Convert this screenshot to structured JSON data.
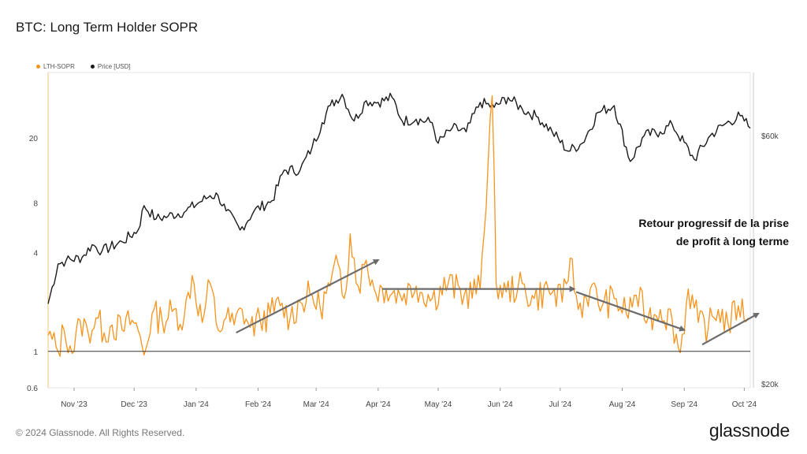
{
  "chart_data": {
    "type": "line",
    "title": "BTC: Long Term Holder SOPR",
    "legend": {
      "placement": "top-left",
      "entries": [
        "LTH-SOPR",
        "Price [USD]"
      ]
    },
    "colors": {
      "lth_sopr": "#f7931a",
      "price": "#1a1a1a",
      "baseline": "#333333",
      "arrow": "#6b6b6b"
    },
    "x_range": [
      "2023-10-19",
      "2024-10-04"
    ],
    "x_ticks": [
      {
        "label": "Nov '23",
        "date": "2023-11-01"
      },
      {
        "label": "Dec '23",
        "date": "2023-12-01"
      },
      {
        "label": "Jan '24",
        "date": "2024-01-01"
      },
      {
        "label": "Feb '24",
        "date": "2024-02-01"
      },
      {
        "label": "Mar '24",
        "date": "2024-03-01"
      },
      {
        "label": "Apr '24",
        "date": "2024-04-01"
      },
      {
        "label": "May '24",
        "date": "2024-05-01"
      },
      {
        "label": "Jun '24",
        "date": "2024-06-01"
      },
      {
        "label": "Jul '24",
        "date": "2024-07-01"
      },
      {
        "label": "Aug '24",
        "date": "2024-08-01"
      },
      {
        "label": "Sep '24",
        "date": "2024-09-01"
      },
      {
        "label": "Oct '24",
        "date": "2024-10-01"
      }
    ],
    "y_left": {
      "scale": "log",
      "range": [
        0.6,
        50
      ],
      "ticks": [
        {
          "label": "0.6",
          "value": 0.6
        },
        {
          "label": "1",
          "value": 1
        },
        {
          "label": "4",
          "value": 4
        },
        {
          "label": "8",
          "value": 8
        },
        {
          "label": "20",
          "value": 20
        }
      ]
    },
    "y_right": {
      "scale": "log",
      "ticks": [
        {
          "label": "$20k",
          "value": 20000
        },
        {
          "label": "$60k",
          "value": 60000
        }
      ]
    },
    "baseline_value": 1,
    "series": [
      {
        "name": "LTH-SOPR",
        "axis": "left",
        "points": [
          [
            "2023-10-19",
            1.25
          ],
          [
            "2023-10-24",
            1.0
          ],
          [
            "2023-10-27",
            1.35
          ],
          [
            "2023-11-01",
            1.0
          ],
          [
            "2023-11-04",
            1.55
          ],
          [
            "2023-11-08",
            1.3
          ],
          [
            "2023-11-12",
            1.6
          ],
          [
            "2023-11-16",
            1.3
          ],
          [
            "2023-11-20",
            1.45
          ],
          [
            "2023-11-25",
            1.35
          ],
          [
            "2023-11-30",
            1.55
          ],
          [
            "2023-12-03",
            1.35
          ],
          [
            "2023-12-06",
            0.95
          ],
          [
            "2023-12-10",
            1.7
          ],
          [
            "2023-12-15",
            1.55
          ],
          [
            "2023-12-20",
            1.75
          ],
          [
            "2023-12-26",
            1.6
          ],
          [
            "2023-12-30",
            2.9
          ],
          [
            "2024-01-04",
            1.5
          ],
          [
            "2024-01-08",
            2.6
          ],
          [
            "2024-01-12",
            1.35
          ],
          [
            "2024-01-16",
            1.6
          ],
          [
            "2024-01-20",
            1.45
          ],
          [
            "2024-01-24",
            1.8
          ],
          [
            "2024-01-28",
            1.4
          ],
          [
            "2024-02-02",
            1.55
          ],
          [
            "2024-02-07",
            1.7
          ],
          [
            "2024-02-12",
            1.9
          ],
          [
            "2024-02-17",
            1.6
          ],
          [
            "2024-02-22",
            2.0
          ],
          [
            "2024-02-27",
            2.2
          ],
          [
            "2024-03-03",
            1.85
          ],
          [
            "2024-03-08",
            2.5
          ],
          [
            "2024-03-12",
            3.4
          ],
          [
            "2024-03-15",
            2.1
          ],
          [
            "2024-03-18",
            5.2
          ],
          [
            "2024-03-22",
            2.5
          ],
          [
            "2024-03-26",
            3.6
          ],
          [
            "2024-03-30",
            2.4
          ],
          [
            "2024-04-05",
            2.4
          ],
          [
            "2024-04-12",
            2.2
          ],
          [
            "2024-04-20",
            2.5
          ],
          [
            "2024-04-28",
            2.1
          ],
          [
            "2024-05-06",
            2.6
          ],
          [
            "2024-05-14",
            2.2
          ],
          [
            "2024-05-22",
            2.4
          ],
          [
            "2024-05-28",
            36
          ],
          [
            "2024-05-30",
            2.6
          ],
          [
            "2024-06-04",
            2.3
          ],
          [
            "2024-06-10",
            2.5
          ],
          [
            "2024-06-18",
            2.1
          ],
          [
            "2024-06-25",
            2.4
          ],
          [
            "2024-07-02",
            2.0
          ],
          [
            "2024-07-06",
            3.7
          ],
          [
            "2024-07-10",
            1.8
          ],
          [
            "2024-07-16",
            2.4
          ],
          [
            "2024-07-22",
            1.9
          ],
          [
            "2024-07-28",
            2.1
          ],
          [
            "2024-08-03",
            1.7
          ],
          [
            "2024-08-08",
            2.2
          ],
          [
            "2024-08-14",
            1.6
          ],
          [
            "2024-08-20",
            1.8
          ],
          [
            "2024-08-26",
            1.55
          ],
          [
            "2024-08-30",
            0.98
          ],
          [
            "2024-09-03",
            2.4
          ],
          [
            "2024-09-08",
            1.5
          ],
          [
            "2024-09-13",
            1.4
          ],
          [
            "2024-09-18",
            1.8
          ],
          [
            "2024-09-23",
            1.45
          ],
          [
            "2024-09-28",
            1.9
          ],
          [
            "2024-10-03",
            1.6
          ]
        ]
      },
      {
        "name": "Price [USD]",
        "axis": "right",
        "points": [
          [
            "2023-10-19",
            28500
          ],
          [
            "2023-10-24",
            34000
          ],
          [
            "2023-10-28",
            34500
          ],
          [
            "2023-11-05",
            35000
          ],
          [
            "2023-11-10",
            37000
          ],
          [
            "2023-11-15",
            36000
          ],
          [
            "2023-11-25",
            37500
          ],
          [
            "2023-12-03",
            39500
          ],
          [
            "2023-12-06",
            44000
          ],
          [
            "2023-12-12",
            41500
          ],
          [
            "2023-12-18",
            42000
          ],
          [
            "2023-12-27",
            43000
          ],
          [
            "2024-01-02",
            44500
          ],
          [
            "2024-01-08",
            46000
          ],
          [
            "2024-01-12",
            46000
          ],
          [
            "2024-01-16",
            43000
          ],
          [
            "2024-01-23",
            39500
          ],
          [
            "2024-01-30",
            43000
          ],
          [
            "2024-02-08",
            45000
          ],
          [
            "2024-02-14",
            51500
          ],
          [
            "2024-02-22",
            51500
          ],
          [
            "2024-02-28",
            57000
          ],
          [
            "2024-03-04",
            63500
          ],
          [
            "2024-03-08",
            68500
          ],
          [
            "2024-03-14",
            72000
          ],
          [
            "2024-03-20",
            64000
          ],
          [
            "2024-03-26",
            70000
          ],
          [
            "2024-04-01",
            69500
          ],
          [
            "2024-04-08",
            71000
          ],
          [
            "2024-04-13",
            64000
          ],
          [
            "2024-04-20",
            64500
          ],
          [
            "2024-04-28",
            63500
          ],
          [
            "2024-05-01",
            58000
          ],
          [
            "2024-05-08",
            62000
          ],
          [
            "2024-05-15",
            61000
          ],
          [
            "2024-05-22",
            69500
          ],
          [
            "2024-05-29",
            68000
          ],
          [
            "2024-06-05",
            71000
          ],
          [
            "2024-06-12",
            67500
          ],
          [
            "2024-06-20",
            65000
          ],
          [
            "2024-06-27",
            61000
          ],
          [
            "2024-07-05",
            56000
          ],
          [
            "2024-07-12",
            58000
          ],
          [
            "2024-07-20",
            66500
          ],
          [
            "2024-07-28",
            68500
          ],
          [
            "2024-08-05",
            53500
          ],
          [
            "2024-08-12",
            60000
          ],
          [
            "2024-08-20",
            61000
          ],
          [
            "2024-08-26",
            63000
          ],
          [
            "2024-09-06",
            54000
          ],
          [
            "2024-09-14",
            60000
          ],
          [
            "2024-09-21",
            63000
          ],
          [
            "2024-09-29",
            65500
          ],
          [
            "2024-10-01",
            64000
          ],
          [
            "2024-10-04",
            62000
          ]
        ]
      }
    ],
    "trend_arrows": [
      {
        "from": [
          "2024-01-21",
          1.3
        ],
        "to": [
          "2024-04-01",
          3.6
        ]
      },
      {
        "from": [
          "2024-04-03",
          2.4
        ],
        "to": [
          "2024-07-08",
          2.4
        ]
      },
      {
        "from": [
          "2024-07-09",
          2.3
        ],
        "to": [
          "2024-09-01",
          1.35
        ]
      },
      {
        "from": [
          "2024-09-10",
          1.1
        ],
        "to": [
          "2024-10-08",
          1.7
        ]
      }
    ]
  },
  "annotation": {
    "line1": "Retour progressif de la prise",
    "line2": "de profit à long terme"
  },
  "footer": {
    "copyright": "© 2024 Glassnode. All Rights Reserved.",
    "brand": "glassnode"
  }
}
